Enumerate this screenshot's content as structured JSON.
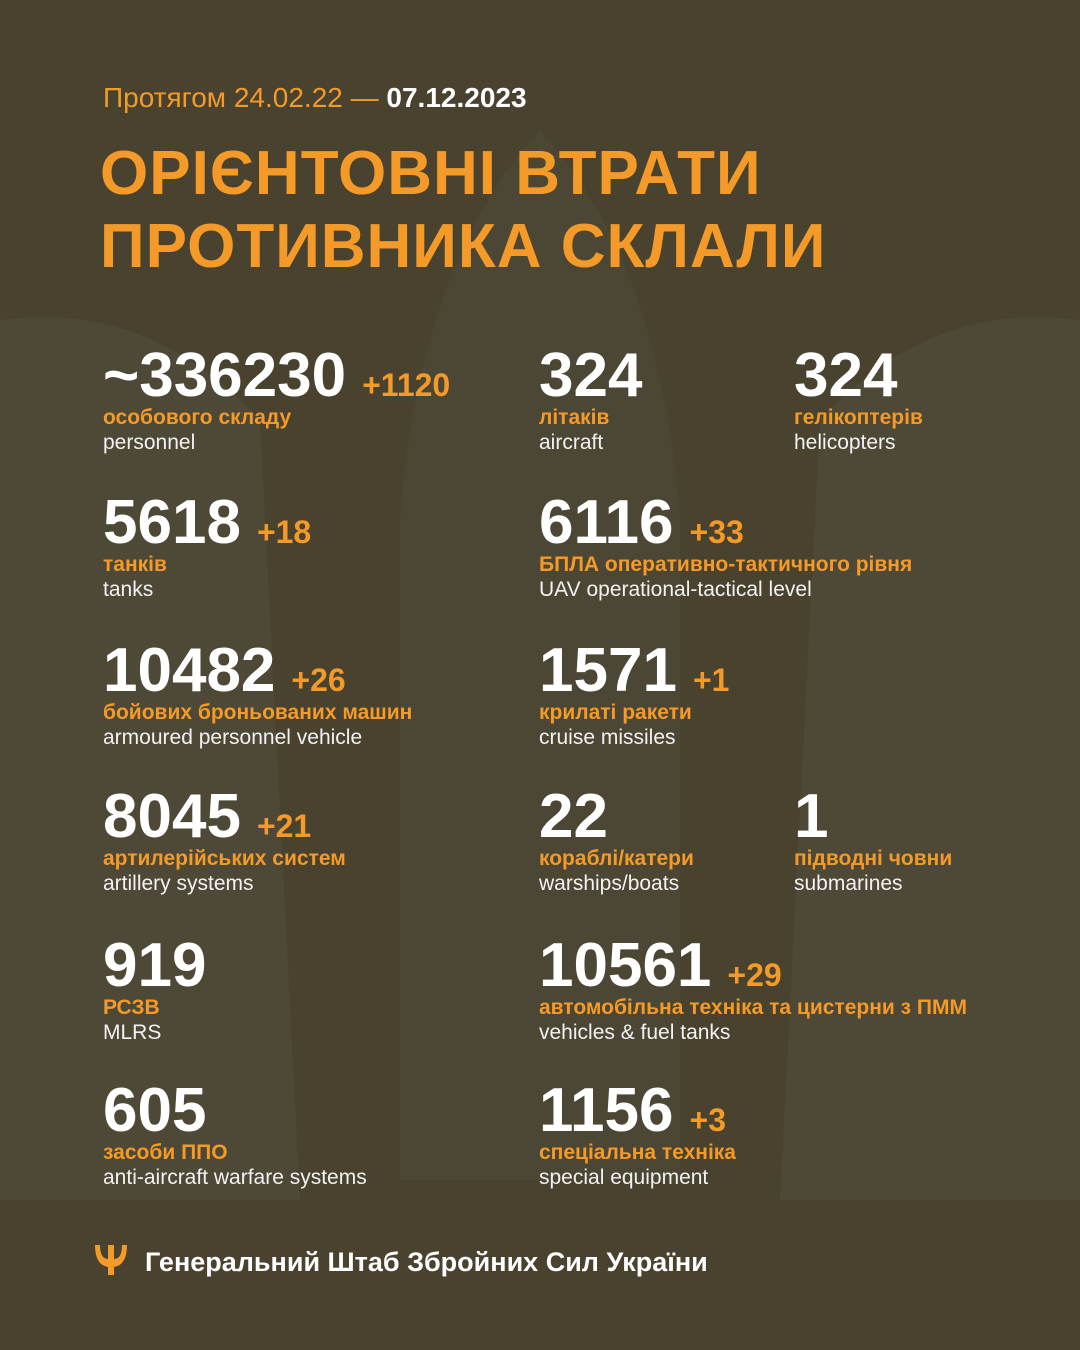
{
  "header": {
    "period": "Протягом 24.02.22 —",
    "date": "07.12.2023",
    "title_lines": [
      "ОРІЄНТОВНІ ВТРАТИ",
      "ПРОТИВНИКА СКЛАЛИ"
    ]
  },
  "items": [
    {
      "value": "~336230",
      "delta": "+1120",
      "uk": "особового складу",
      "en": "personnel"
    },
    {
      "value": "324",
      "uk": "літаків",
      "en": "aircraft"
    },
    {
      "value": "324",
      "uk": "гелікоптерів",
      "en": "helicopters"
    },
    {
      "value": "5618",
      "delta": "+18",
      "uk": "танків",
      "en": "tanks"
    },
    {
      "value": "6116",
      "delta": "+33",
      "uk": "БПЛА оперативно-тактичного рівня",
      "en": "UAV operational-tactical level"
    },
    {
      "value": "10482",
      "delta": "+26",
      "uk": "бойових броньованих машин",
      "en": "armoured personnel vehicle"
    },
    {
      "value": "1571",
      "delta": "+1",
      "uk": "крилаті ракети",
      "en": "cruise missiles"
    },
    {
      "value": "8045",
      "delta": "+21",
      "uk": "артилерійських систем",
      "en": "artillery systems"
    },
    {
      "value": "22",
      "uk": "кораблі/катери",
      "en": "warships/boats"
    },
    {
      "value": "1",
      "uk": "підводні човни",
      "en": "submarines"
    },
    {
      "value": "919",
      "uk": "РСЗВ",
      "en": "MLRS"
    },
    {
      "value": "10561",
      "delta": "+29",
      "uk": "автомобільна техніка та цистерни з ПММ",
      "en": "vehicles & fuel tanks"
    },
    {
      "value": "605",
      "uk": "засоби ППО",
      "en": "anti-aircraft warfare systems"
    },
    {
      "value": "1156",
      "delta": "+3",
      "uk": "спеціальна техніка",
      "en": "special equipment"
    }
  ],
  "footer": "Генеральний Штаб Збройних Сил України"
}
